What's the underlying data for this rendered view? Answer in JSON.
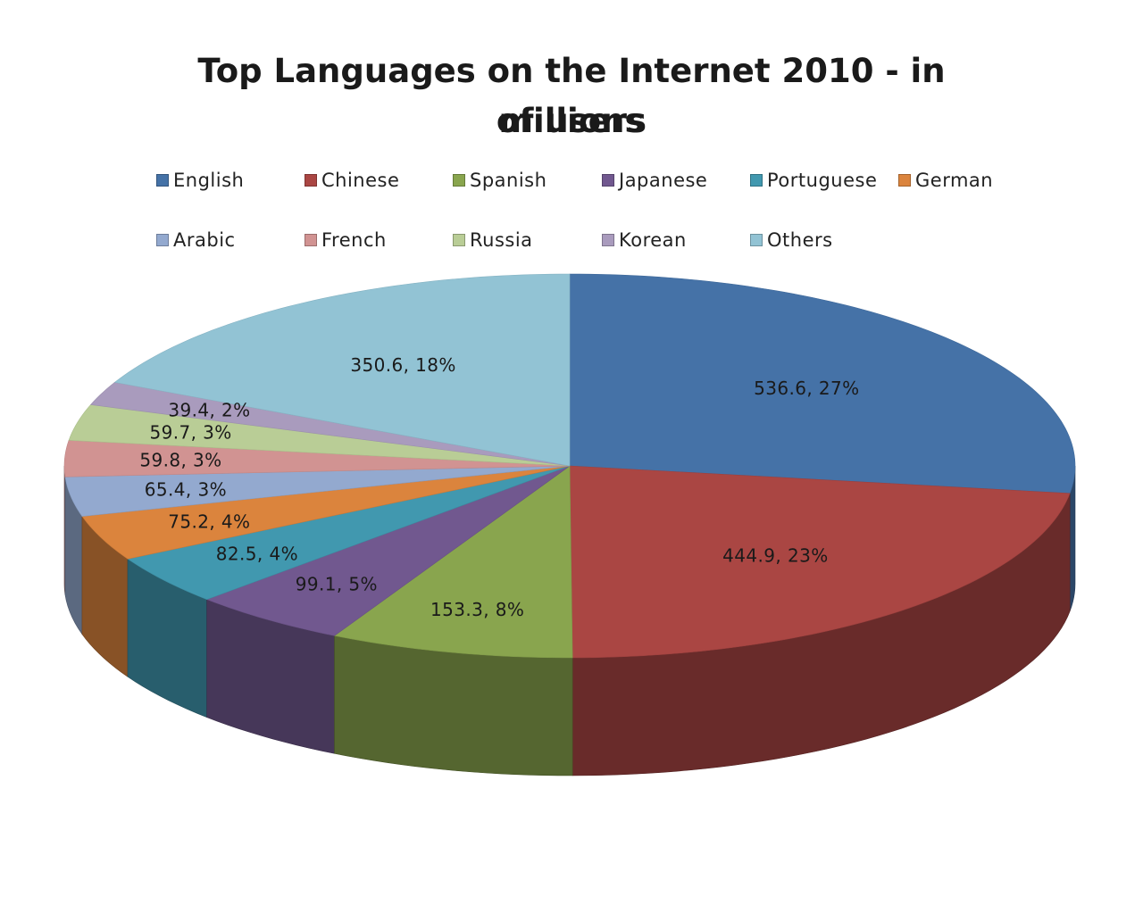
{
  "chart_data": {
    "type": "pie",
    "style": "3d",
    "title": "Top Languages on the Internet 2010 - in millions of users",
    "title_lines": [
      "Top Languages on the Internet 2010 - in millions",
      "of users"
    ],
    "legend_position": "top",
    "categories": [
      "English",
      "Chinese",
      "Spanish",
      "Japanese",
      "Portuguese",
      "German",
      "Arabic",
      "French",
      "Russia",
      "Korean",
      "Others"
    ],
    "values": [
      536.6,
      444.9,
      153.3,
      99.1,
      82.5,
      75.2,
      65.4,
      59.8,
      59.7,
      39.4,
      350.6
    ],
    "percent_labels": [
      "27%",
      "23%",
      "8%",
      "5%",
      "4%",
      "4%",
      "3%",
      "3%",
      "3%",
      "2%",
      "18%"
    ],
    "data_labels": [
      "536.6, 27%",
      "444.9, 23%",
      "153.3, 8%",
      "99.1, 5%",
      "82.5, 4%",
      "75.2, 4%",
      "65.4, 3%",
      "59.8, 3%",
      "59.7, 3%",
      "39.4, 2%",
      "350.6, 18%"
    ],
    "colors": [
      "#4572a7",
      "#aa4643",
      "#89a54e",
      "#71588f",
      "#4198af",
      "#db843d",
      "#93a9cf",
      "#d19392",
      "#b9cd96",
      "#a99bbd",
      "#92c3d4"
    ]
  }
}
